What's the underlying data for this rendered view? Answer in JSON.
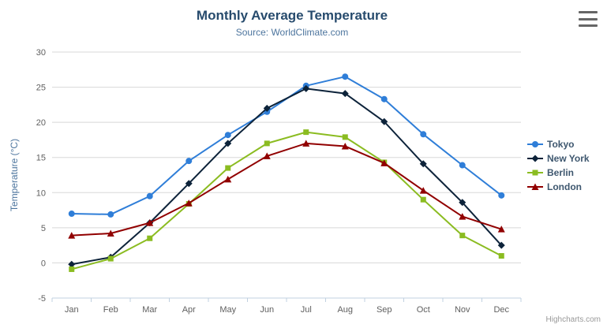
{
  "header": {
    "title": "Monthly Average Temperature",
    "subtitle": "Source: WorldClimate.com"
  },
  "credits": "Highcharts.com",
  "icons": {
    "export_menu": "hamburger-icon"
  },
  "chart_data": {
    "type": "line",
    "title": "Monthly Average Temperature",
    "subtitle": "Source: WorldClimate.com",
    "xlabel": "",
    "ylabel": "Temperature (°C)",
    "ylim": [
      -5,
      30
    ],
    "ytick_interval": 5,
    "grid": true,
    "legend_position": "right",
    "categories": [
      "Jan",
      "Feb",
      "Mar",
      "Apr",
      "May",
      "Jun",
      "Jul",
      "Aug",
      "Sep",
      "Oct",
      "Nov",
      "Dec"
    ],
    "series": [
      {
        "name": "Tokyo",
        "color": "#2f7ed8",
        "marker": "circle",
        "values": [
          7.0,
          6.9,
          9.5,
          14.5,
          18.2,
          21.5,
          25.2,
          26.5,
          23.3,
          18.3,
          13.9,
          9.6
        ]
      },
      {
        "name": "New York",
        "color": "#0d233a",
        "marker": "diamond",
        "values": [
          -0.2,
          0.8,
          5.7,
          11.3,
          17.0,
          22.0,
          24.8,
          24.1,
          20.1,
          14.1,
          8.6,
          2.5
        ]
      },
      {
        "name": "Berlin",
        "color": "#8bbc21",
        "marker": "square",
        "values": [
          -0.9,
          0.6,
          3.5,
          8.4,
          13.5,
          17.0,
          18.6,
          17.9,
          14.3,
          9.0,
          3.9,
          1.0
        ]
      },
      {
        "name": "London",
        "color": "#910000",
        "marker": "triangle",
        "values": [
          3.9,
          4.2,
          5.7,
          8.5,
          11.9,
          15.2,
          17.0,
          16.6,
          14.2,
          10.3,
          6.6,
          4.8
        ]
      }
    ],
    "axis_colors": {
      "grid_line": "#d8d8d8",
      "axis_line": "#c0d0e0",
      "tick_label": "#606060",
      "axis_title": "#4d759e"
    }
  }
}
